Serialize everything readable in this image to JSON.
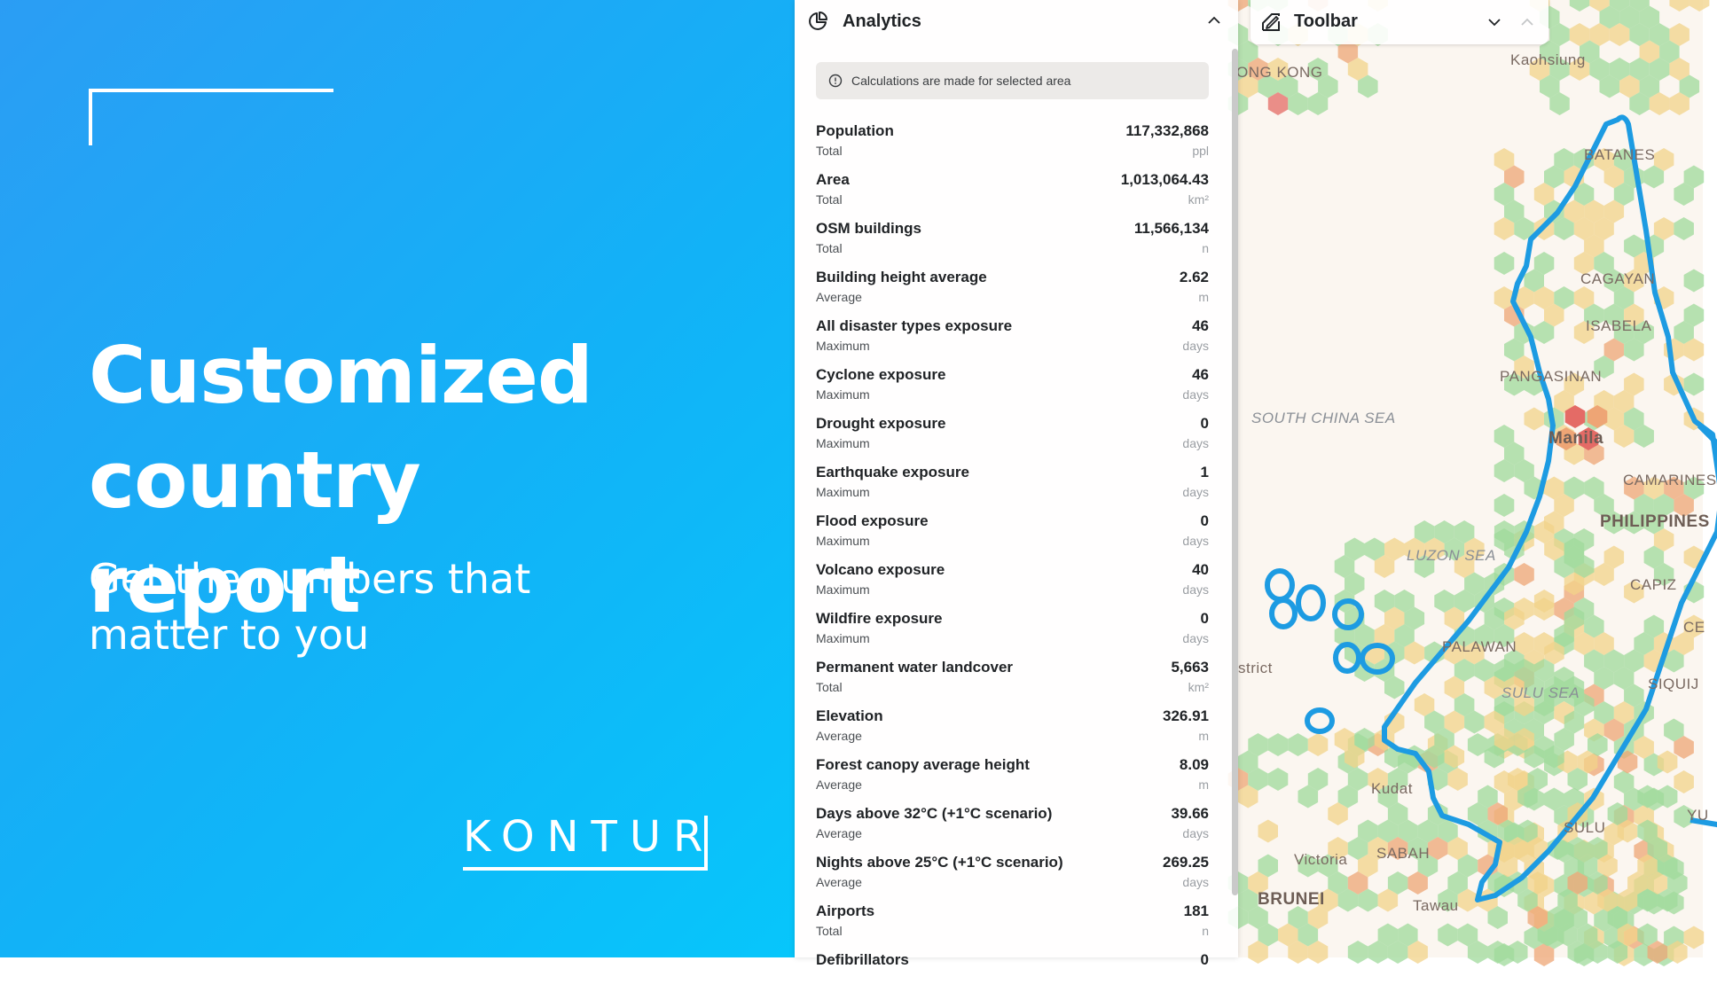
{
  "promo": {
    "title_line1": "Customized",
    "title_line2": "country report",
    "subtitle_line1": "Get the numbers that",
    "subtitle_line2": "matter to you",
    "logo": "KONTUR"
  },
  "analytics": {
    "title": "Analytics",
    "icon": "pie-chart-icon",
    "collapse_icon": "chevron-up-icon",
    "info_icon": "info-circle-icon",
    "info_text": "Calculations are made for selected area",
    "metrics": [
      {
        "name": "Population",
        "agg": "Total",
        "value": "117,332,868",
        "unit": "ppl"
      },
      {
        "name": "Area",
        "agg": "Total",
        "value": "1,013,064.43",
        "unit": "km²"
      },
      {
        "name": "OSM buildings",
        "agg": "Total",
        "value": "11,566,134",
        "unit": "n"
      },
      {
        "name": "Building height average",
        "agg": "Average",
        "value": "2.62",
        "unit": "m"
      },
      {
        "name": "All disaster types exposure",
        "agg": "Maximum",
        "value": "46",
        "unit": "days"
      },
      {
        "name": "Cyclone exposure",
        "agg": "Maximum",
        "value": "46",
        "unit": "days"
      },
      {
        "name": "Drought exposure",
        "agg": "Maximum",
        "value": "0",
        "unit": "days"
      },
      {
        "name": "Earthquake exposure",
        "agg": "Maximum",
        "value": "1",
        "unit": "days"
      },
      {
        "name": "Flood exposure",
        "agg": "Maximum",
        "value": "0",
        "unit": "days"
      },
      {
        "name": "Volcano exposure",
        "agg": "Maximum",
        "value": "40",
        "unit": "days"
      },
      {
        "name": "Wildfire exposure",
        "agg": "Maximum",
        "value": "0",
        "unit": "days"
      },
      {
        "name": "Permanent water landcover",
        "agg": "Total",
        "value": "5,663",
        "unit": "km²"
      },
      {
        "name": "Elevation",
        "agg": "Average",
        "value": "326.91",
        "unit": "m"
      },
      {
        "name": "Forest canopy average height",
        "agg": "Average",
        "value": "8.09",
        "unit": "m"
      },
      {
        "name": "Days above 32°C (+1°C scenario)",
        "agg": "Average",
        "value": "39.66",
        "unit": "days"
      },
      {
        "name": "Nights above 25°C (+1°C scenario)",
        "agg": "Average",
        "value": "269.25",
        "unit": "days"
      },
      {
        "name": "Airports",
        "agg": "Total",
        "value": "181",
        "unit": "n"
      },
      {
        "name": "Defibrillators",
        "agg": "",
        "value": "0",
        "unit": ""
      }
    ]
  },
  "toolbar": {
    "title": "Toolbar",
    "icon": "draw-tools-icon",
    "expand_icon": "chevron-down-icon",
    "collapse_icon": "chevron-up-icon"
  },
  "map": {
    "labels": {
      "hong_kong": "ONG KONG",
      "kaohsiung": "Kaohsiung",
      "batanes": "BATANES",
      "cagayan": "CAGAYAN",
      "isabela": "ISABELA",
      "pangasinan": "PANGASINAN",
      "south_china_sea": "SOUTH CHINA SEA",
      "manila": "Manila",
      "camarines": "CAMARINES",
      "philippines": "PHILIPPINES",
      "luzon_sea": "LUZON SEA",
      "capiz": "CAPIZ",
      "ce": "CE",
      "palawan": "PALAWAN",
      "district": "strict",
      "sulu_sea": "SULU SEA",
      "siquijor": "SIQUIJ",
      "kudat": "Kudat",
      "yu": "YU",
      "sulu": "SULU",
      "sabah": "SABAH",
      "victoria": "Victoria",
      "brunei": "BRUNEI",
      "tawau": "Tawau"
    },
    "colors": {
      "selection": "#1d9be2",
      "hex_green": "#9fd99b",
      "hex_yellow": "#f2d38a",
      "hex_orange": "#eea575",
      "hex_red": "#e46b66"
    }
  }
}
